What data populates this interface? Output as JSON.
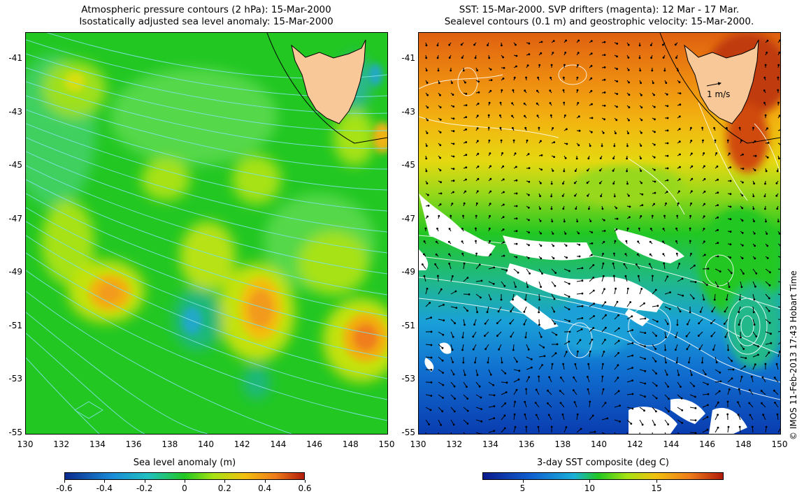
{
  "left_panel": {
    "title_line1": "Atmospheric pressure contours (2 hPa): 15-Mar-2000",
    "title_line2": "Isostatically adjusted sea level anomaly: 15-Mar-2000",
    "colorbar_title": "Sea level anomaly (m)",
    "colorbar_ticks": [
      "-0.6",
      "-0.4",
      "-0.2",
      "0",
      "0.2",
      "0.4",
      "0.6"
    ],
    "colorbar_range": [
      -0.6,
      0.6
    ]
  },
  "right_panel": {
    "title_line1": "SST: 15-Mar-2000. SVP drifters (magenta): 12 Mar - 17 Mar.",
    "title_line2": "Sealevel contours (0.1 m) and geostrophic velocity: 15-Mar-2000.",
    "colorbar_title": "3-day SST composite (deg C)",
    "colorbar_ticks": [
      "5",
      "10",
      "15"
    ],
    "colorbar_range": [
      2,
      20
    ],
    "scale_label": "1 m/s"
  },
  "lat_labels": [
    "-41",
    "-43",
    "-45",
    "-47",
    "-49",
    "-51",
    "-53",
    "-55"
  ],
  "lon_labels": [
    "130",
    "132",
    "134",
    "136",
    "138",
    "140",
    "142",
    "144",
    "146",
    "148",
    "150"
  ],
  "lat_range": [
    -55,
    -40
  ],
  "lon_range": [
    130,
    150
  ],
  "copyright": "© IMOS 11-Feb-2013 17:43 Hobart Time",
  "colors": {
    "land": "#f8c898",
    "sla_base": "#22c722",
    "sst_warm": "#e06a10",
    "sst_cool": "#1a8cd8",
    "contour_pressure": "#7fe0e0",
    "contour_sealevel": "#ffffff"
  }
}
